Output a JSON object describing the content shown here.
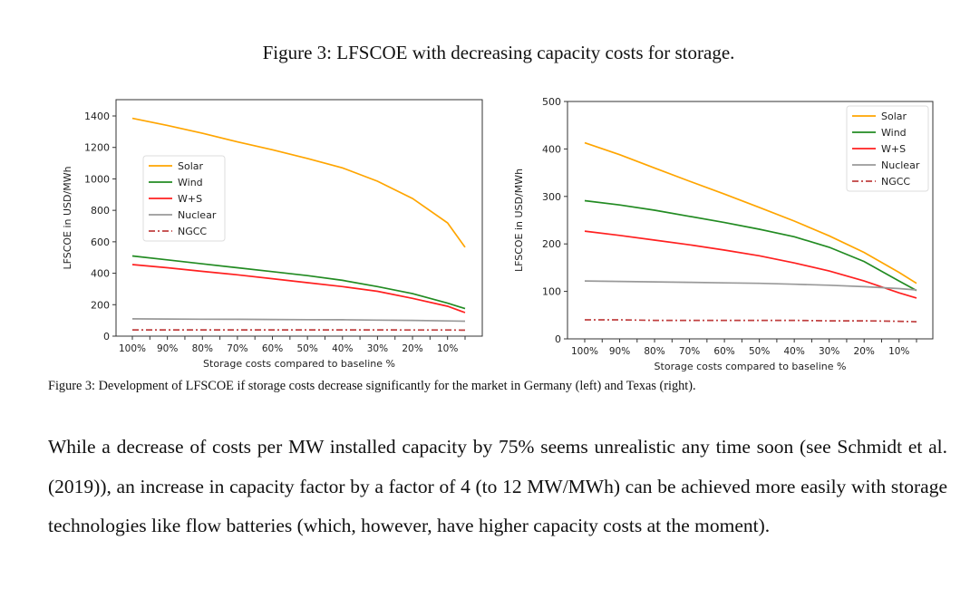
{
  "figure_title": "Figure 3: LFSCOE with decreasing capacity costs for storage.",
  "caption": "Figure 3: Development of LFSCOE if storage costs decrease significantly for the market in Germany (left) and Texas (right).",
  "paragraph": "While a decrease of costs per MW installed capacity by 75% seems unrealistic any time soon (see Schmidt et al. (2019)), an increase in capacity factor by a factor of 4 (to 12 MW/MWh) can be achieved more easily with storage technologies like flow batteries (which, however, have higher capacity costs at the moment).",
  "chart_data": [
    {
      "type": "line",
      "xlabel": "Storage costs compared to baseline %",
      "ylabel": "LFSCOE in USD/MWh",
      "x": [
        100,
        90,
        80,
        70,
        60,
        50,
        40,
        30,
        20,
        10,
        5
      ],
      "xticks": [
        "100%",
        "90%",
        "80%",
        "70%",
        "60%",
        "50%",
        "40%",
        "30%",
        "20%",
        "10%"
      ],
      "yticks": [
        "0",
        "200",
        "400",
        "600",
        "800",
        "1000",
        "1200",
        "1400"
      ],
      "ylim": [
        0,
        1500
      ],
      "legend": "center-left",
      "grid": false,
      "series": [
        {
          "name": "Solar",
          "color": "#ffa500",
          "dash": "solid",
          "values": [
            1385,
            1340,
            1290,
            1235,
            1185,
            1130,
            1070,
            985,
            875,
            720,
            565
          ]
        },
        {
          "name": "Wind",
          "color": "#228b22",
          "dash": "solid",
          "values": [
            510,
            485,
            460,
            435,
            410,
            385,
            355,
            315,
            270,
            210,
            175
          ]
        },
        {
          "name": "W+S",
          "color": "#ff2020",
          "dash": "solid",
          "values": [
            455,
            435,
            412,
            390,
            365,
            340,
            315,
            285,
            240,
            190,
            150
          ]
        },
        {
          "name": "Nuclear",
          "color": "#999999",
          "dash": "solid",
          "values": [
            110,
            109,
            108,
            107,
            106,
            105,
            104,
            102,
            100,
            97,
            95
          ]
        },
        {
          "name": "NGCC",
          "color": "#c04040",
          "dash": "dashdot",
          "values": [
            40,
            40,
            40,
            40,
            40,
            40,
            40,
            40,
            39,
            39,
            38
          ]
        }
      ]
    },
    {
      "type": "line",
      "xlabel": "Storage costs compared to baseline %",
      "ylabel": "LFSCOE in USD/MWh",
      "x": [
        100,
        90,
        80,
        70,
        60,
        50,
        40,
        30,
        20,
        10,
        5
      ],
      "xticks": [
        "100%",
        "90%",
        "80%",
        "70%",
        "60%",
        "50%",
        "40%",
        "30%",
        "20%",
        "10%"
      ],
      "yticks": [
        "0",
        "100",
        "200",
        "300",
        "400",
        "500"
      ],
      "ylim": [
        0,
        500
      ],
      "legend": "top-right",
      "grid": false,
      "series": [
        {
          "name": "Solar",
          "color": "#ffa500",
          "dash": "solid",
          "values": [
            413,
            388,
            360,
            332,
            305,
            277,
            248,
            217,
            182,
            140,
            117
          ]
        },
        {
          "name": "Wind",
          "color": "#228b22",
          "dash": "solid",
          "values": [
            291,
            282,
            271,
            258,
            245,
            231,
            215,
            193,
            163,
            122,
            102
          ]
        },
        {
          "name": "W+S",
          "color": "#ff2020",
          "dash": "solid",
          "values": [
            227,
            218,
            208,
            198,
            187,
            175,
            160,
            143,
            122,
            97,
            86
          ]
        },
        {
          "name": "Nuclear",
          "color": "#999999",
          "dash": "solid",
          "values": [
            122,
            121,
            120,
            119,
            118,
            117,
            115,
            113,
            110,
            106,
            103
          ]
        },
        {
          "name": "NGCC",
          "color": "#c04040",
          "dash": "dashdot",
          "values": [
            40,
            40,
            39,
            39,
            39,
            39,
            39,
            38,
            38,
            37,
            36
          ]
        }
      ]
    }
  ]
}
